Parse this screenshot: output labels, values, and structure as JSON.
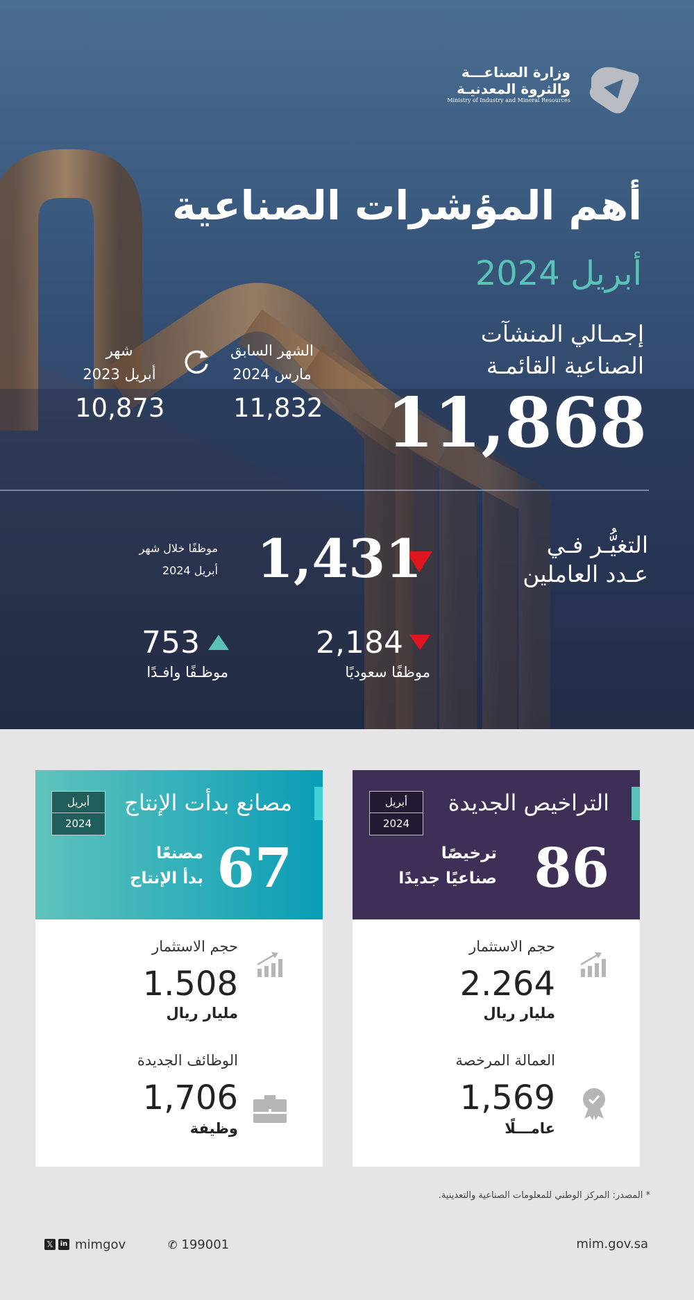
{
  "logo": {
    "ar_line1": "وزارة الصناعـــة",
    "ar_line2": "والثروة المعدنيـة",
    "en": "Ministry of Industry and Mineral Resources"
  },
  "title": "أهم المؤشرات الصناعية",
  "period": "أبريل 2024",
  "facilities": {
    "label_line1": "إجمـالي المنشآت",
    "label_line2": "الصناعية القائمـة",
    "value": "11,868",
    "previous_month": {
      "label": "الشهر السابق",
      "period": "مارس 2024",
      "value": "11,832",
      "icon": "refresh-icon"
    },
    "last_year": {
      "label": "شهر",
      "period": "أبريل 2023",
      "value": "10,873"
    }
  },
  "employment": {
    "label_line1": "التغيُّـر فـي",
    "label_line2": "عـدد العاملين",
    "value": "1,431",
    "direction": "down",
    "note_line1": "موظفًا خلال شهر",
    "note_line2": "أبريل 2024",
    "saudi": {
      "value": "2,184",
      "label": "موظفًا سعوديًا",
      "direction": "down"
    },
    "expat": {
      "value": "753",
      "label": "موظـفًا وافـدًا",
      "direction": "up"
    }
  },
  "colors": {
    "down": "#e0161e",
    "up": "#5bc2b8",
    "accent_teal": "#5bc2b8",
    "licenses_bg": "#3e2f57",
    "factories_bg_start": "#5fc3bd",
    "factories_bg_end": "#0a9db6"
  },
  "licenses_card": {
    "title": "التراخيص الجديدة",
    "date_month": "أبريل",
    "date_year": "2024",
    "value": "86",
    "value_label_line1": "ترخيصًا",
    "value_label_line2": "صناعيًا جديدًا",
    "metric1": {
      "label": "حجم الاستثمار",
      "value": "2.264",
      "unit": "مليار ريال",
      "icon": "growth-chart-icon"
    },
    "metric2": {
      "label": "العمالة المرخصة",
      "value": "1,569",
      "unit": "عامـــلًا",
      "icon": "certified-badge-icon"
    }
  },
  "factories_card": {
    "title": "مصانع بدأت الإنتاج",
    "date_month": "أبريل",
    "date_year": "2024",
    "value": "67",
    "value_label_line1": "مصنعًا",
    "value_label_line2": "بدأ الإنتاج",
    "metric1": {
      "label": "حجم الاستثمار",
      "value": "1.508",
      "unit": "مليار ريال",
      "icon": "growth-chart-icon"
    },
    "metric2": {
      "label": "الوظائف الجديدة",
      "value": "1,706",
      "unit": "وظيفة",
      "icon": "briefcase-icon"
    }
  },
  "source_note": "* المصدر: المركز الوطني للمعلومات الصناعية والتعدينية.",
  "footer": {
    "social_handle": "mimgov",
    "phone": "199001",
    "website": "mim.gov.sa"
  }
}
